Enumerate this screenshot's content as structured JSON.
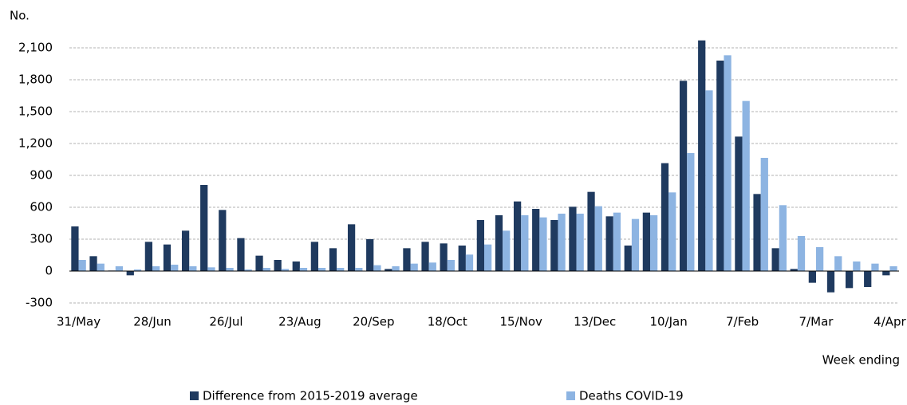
{
  "chart_data": {
    "type": "bar",
    "y_label": "No.",
    "x_label": "Week ending",
    "categories": [
      "31/May",
      null,
      null,
      null,
      "28/Jun",
      null,
      null,
      null,
      "26/Jul",
      null,
      null,
      null,
      "23/Aug",
      null,
      null,
      null,
      "20/Sep",
      null,
      null,
      null,
      "18/Oct",
      null,
      null,
      null,
      "15/Nov",
      null,
      null,
      null,
      "13/Dec",
      null,
      null,
      null,
      "10/Jan",
      null,
      null,
      null,
      "7/Feb",
      null,
      null,
      null,
      "7/Mar",
      null,
      null,
      null,
      "4/Apr"
    ],
    "series": [
      {
        "name": "Difference from 2015-2019 average",
        "color": "#1f3a5f",
        "values": [
          420,
          140,
          5,
          -40,
          275,
          250,
          380,
          810,
          575,
          310,
          145,
          105,
          90,
          275,
          215,
          440,
          300,
          20,
          215,
          275,
          260,
          240,
          480,
          525,
          655,
          585,
          480,
          605,
          745,
          515,
          240,
          550,
          1015,
          1790,
          2170,
          1980,
          1265,
          725,
          215,
          20,
          -110,
          -200,
          -160,
          -150,
          -40
        ]
      },
      {
        "name": "Deaths COVID-19",
        "color": "#8db4e2",
        "values": [
          105,
          70,
          45,
          15,
          45,
          60,
          45,
          35,
          30,
          15,
          30,
          20,
          30,
          30,
          30,
          30,
          55,
          45,
          70,
          80,
          105,
          155,
          250,
          380,
          525,
          505,
          540,
          540,
          610,
          550,
          490,
          525,
          740,
          1110,
          1700,
          2030,
          1600,
          1065,
          620,
          330,
          225,
          140,
          90,
          70,
          45
        ]
      }
    ],
    "ylim": [
      -300,
      2100
    ],
    "yticks": [
      -300,
      0,
      300,
      600,
      900,
      {
        "value": 1200,
        "label": "1,200"
      },
      {
        "value": 1500,
        "label": "1,500"
      },
      {
        "value": 1800,
        "label": "1,800"
      },
      {
        "value": 2100,
        "label": "2,100"
      }
    ],
    "grid": true
  }
}
